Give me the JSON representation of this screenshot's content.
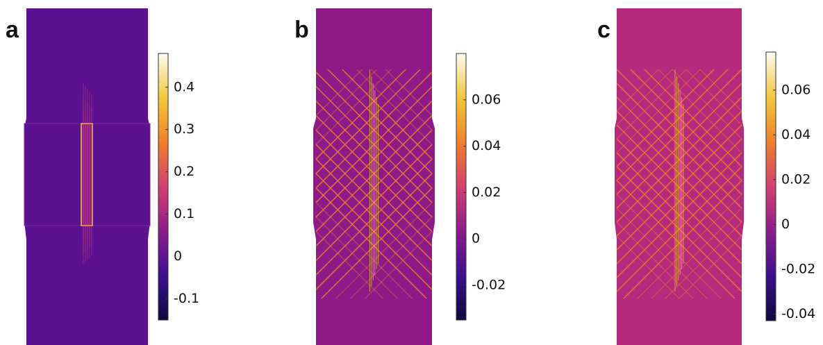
{
  "chart_data": [
    {
      "type": "heatmap",
      "label": "a",
      "background": "#5c1190",
      "clim": [
        -0.15,
        0.48
      ],
      "cticks": [
        -0.1,
        0,
        0.1,
        0.2,
        0.3,
        0.4
      ],
      "colormap": [
        "#0d0a3c",
        "#3b0f8f",
        "#8c1c8c",
        "#d24070",
        "#f0802c",
        "#f2c83a",
        "#fcfcf2"
      ]
    },
    {
      "type": "heatmap",
      "label": "b",
      "background": "#8e1a88",
      "clim": [
        -0.035,
        0.08
      ],
      "cticks": [
        -0.02,
        0,
        0.02,
        0.04,
        0.06
      ],
      "colormap": [
        "#0d0a3c",
        "#3b0f8f",
        "#8c1c8c",
        "#d24070",
        "#f0802c",
        "#f2c83a",
        "#fcfcf2"
      ]
    },
    {
      "type": "heatmap",
      "label": "c",
      "background": "#b52a7c",
      "clim": [
        -0.043,
        0.077
      ],
      "cticks": [
        -0.04,
        -0.02,
        0,
        0.02,
        0.04,
        0.06
      ],
      "colormap": [
        "#0d0a3c",
        "#3b0f8f",
        "#8c1c8c",
        "#d24070",
        "#f0802c",
        "#f2c83a",
        "#fcfcf2"
      ]
    }
  ]
}
